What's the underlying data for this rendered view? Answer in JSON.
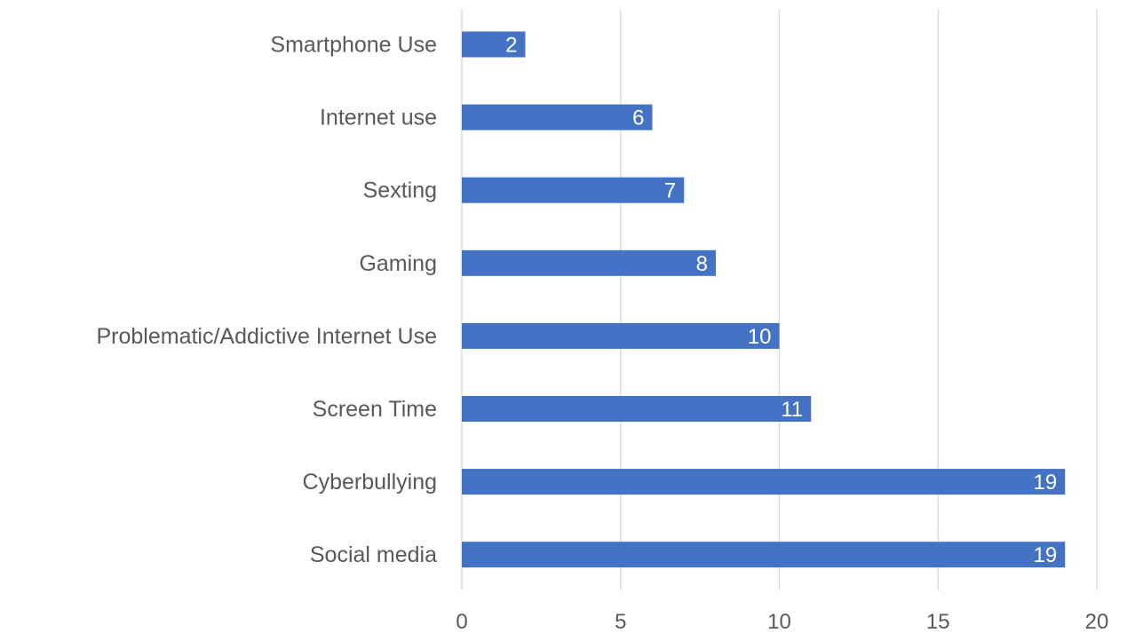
{
  "chart_data": {
    "type": "bar",
    "orientation": "horizontal",
    "categories": [
      "Smartphone Use",
      "Internet use",
      "Sexting",
      "Gaming",
      "Problematic/Addictive Internet Use",
      "Screen Time",
      "Cyberbullying",
      "Social media"
    ],
    "values": [
      2,
      6,
      7,
      8,
      10,
      11,
      19,
      19
    ],
    "xlim": [
      0,
      20
    ],
    "xticks": [
      0,
      5,
      10,
      15,
      20
    ],
    "grid": true,
    "legend": "none",
    "data_labels": true,
    "bar_color": "#4472C4",
    "data_label_color": "#ffffff",
    "grid_color": "#d9d9d9",
    "text_color": "#595959"
  }
}
